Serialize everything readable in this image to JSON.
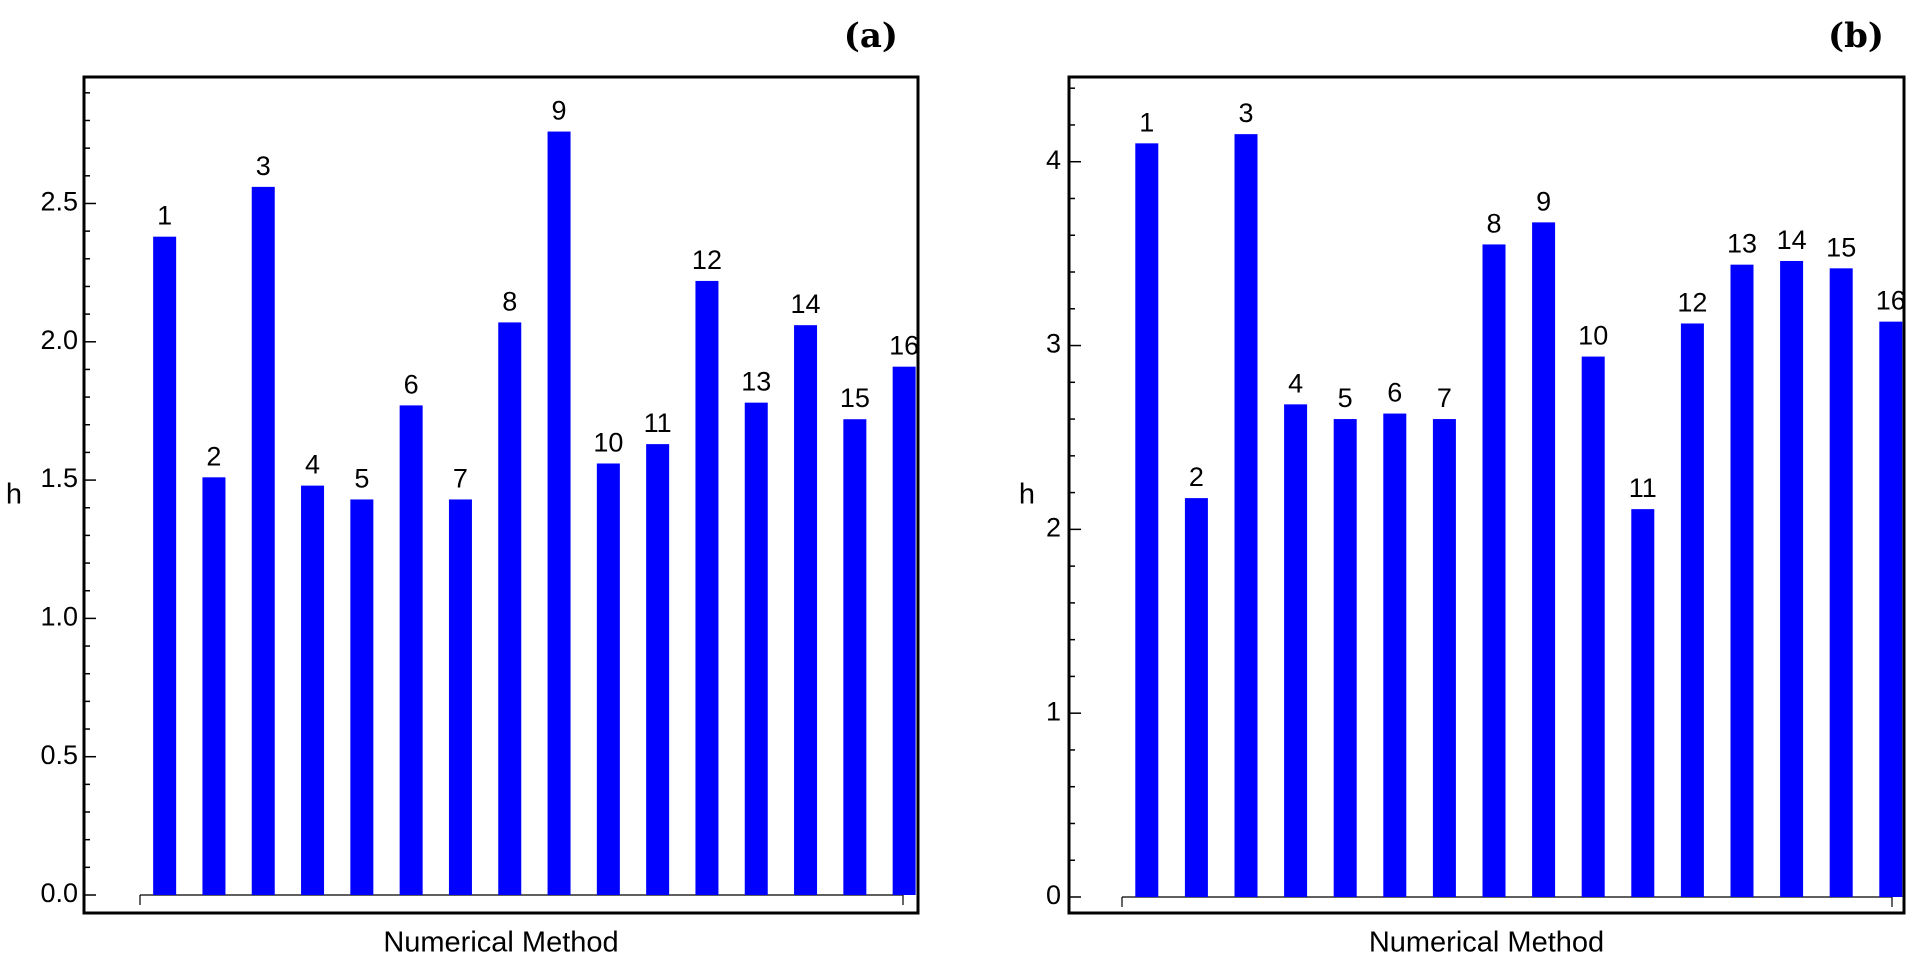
{
  "chart_data": [
    {
      "type": "bar",
      "panel_label": "(a)",
      "xlabel": "Numerical Method",
      "ylabel": "h",
      "ylim": [
        0,
        2.95
      ],
      "yticks": [
        0.0,
        0.5,
        1.0,
        1.5,
        2.0,
        2.5
      ],
      "ytick_labels": [
        "0.0",
        "0.5",
        "1.0",
        "1.5",
        "2.0",
        "2.5"
      ],
      "categories": [
        "1",
        "2",
        "3",
        "4",
        "5",
        "6",
        "7",
        "8",
        "9",
        "10",
        "11",
        "12",
        "13",
        "14",
        "15",
        "16"
      ],
      "values": [
        2.38,
        1.51,
        2.56,
        1.48,
        1.43,
        1.77,
        1.43,
        2.07,
        2.76,
        1.56,
        1.63,
        2.22,
        1.78,
        2.06,
        1.72,
        1.91
      ],
      "bar_color": "#0000ff"
    },
    {
      "type": "bar",
      "panel_label": "(b)",
      "xlabel": "Numerical Method",
      "ylabel": "h",
      "ylim": [
        0,
        4.45
      ],
      "yticks": [
        0,
        1,
        2,
        3,
        4
      ],
      "ytick_labels": [
        "0",
        "1",
        "2",
        "3",
        "4"
      ],
      "categories": [
        "1",
        "2",
        "3",
        "4",
        "5",
        "6",
        "7",
        "8",
        "9",
        "10",
        "11",
        "12",
        "13",
        "14",
        "15",
        "16"
      ],
      "values": [
        4.1,
        2.17,
        4.15,
        2.68,
        2.6,
        2.63,
        2.6,
        3.55,
        3.67,
        2.94,
        2.11,
        3.12,
        3.44,
        3.46,
        3.42,
        3.13
      ],
      "bar_color": "#0000ff"
    }
  ]
}
